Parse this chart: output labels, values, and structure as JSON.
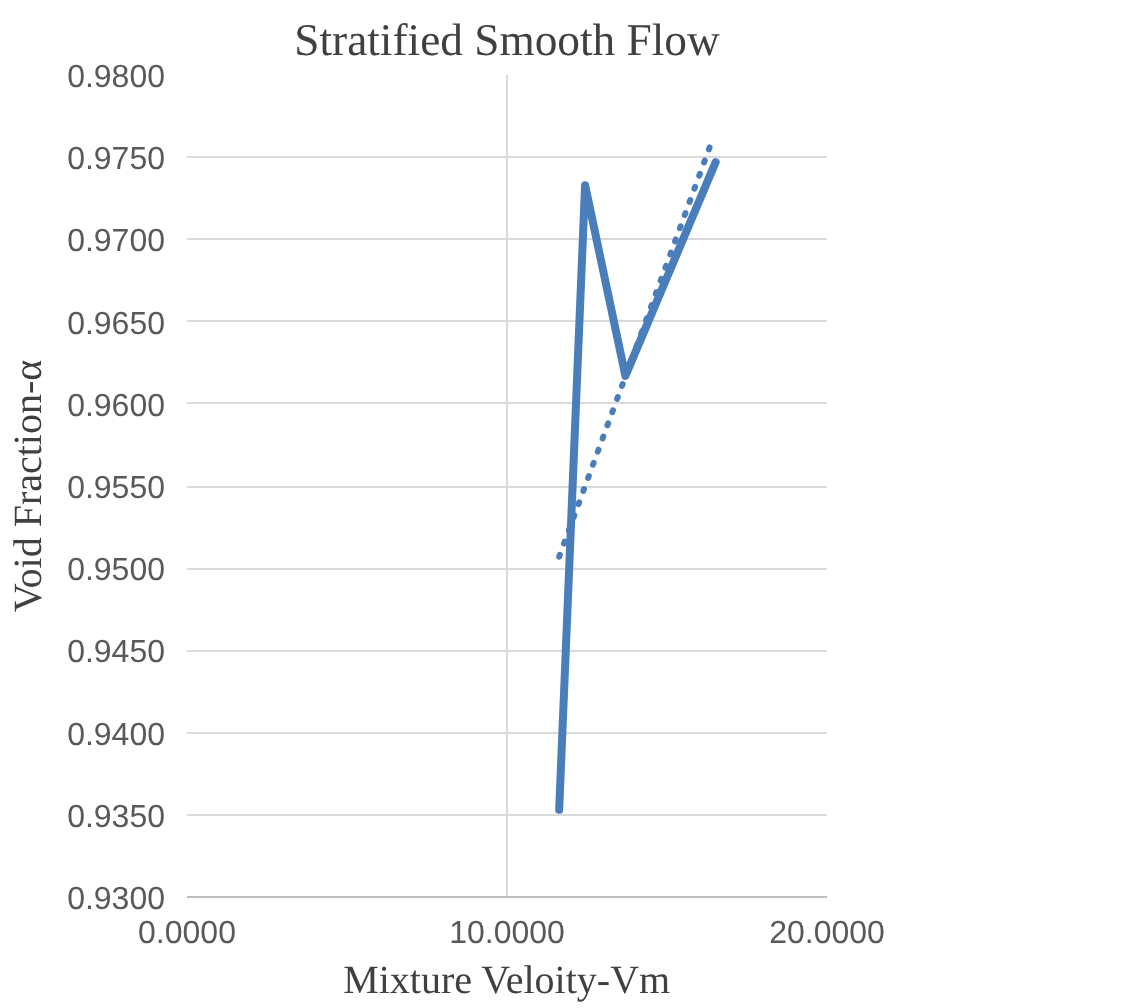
{
  "chart_data": {
    "type": "line",
    "title": "Stratified Smooth Flow",
    "xlabel": "Mixture Veloity-Vm",
    "ylabel": "Void Fraction-α",
    "xlim": [
      0,
      20
    ],
    "xticks": [
      {
        "value": 0,
        "label": "0.0000"
      },
      {
        "value": 10,
        "label": "10.0000"
      },
      {
        "value": 20,
        "label": "20.0000"
      }
    ],
    "ylim": [
      0.93,
      0.98
    ],
    "yticks": [
      {
        "value": 0.93,
        "label": "0.9300"
      },
      {
        "value": 0.935,
        "label": "0.9350"
      },
      {
        "value": 0.94,
        "label": "0.9400"
      },
      {
        "value": 0.945,
        "label": "0.9450"
      },
      {
        "value": 0.95,
        "label": "0.9500"
      },
      {
        "value": 0.955,
        "label": "0.9550"
      },
      {
        "value": 0.96,
        "label": "0.9600"
      },
      {
        "value": 0.965,
        "label": "0.9650"
      },
      {
        "value": 0.97,
        "label": "0.9700"
      },
      {
        "value": 0.975,
        "label": "0.9750"
      },
      {
        "value": 0.98,
        "label": "0.9800"
      }
    ],
    "grid": true,
    "series": [
      {
        "color": "#4a7ebb",
        "x": [
          11.63,
          12.44,
          13.7,
          16.52
        ],
        "values": [
          0.9353,
          0.9733,
          0.9617,
          0.9747
        ],
        "line_style": "solid"
      },
      {
        "type": "line",
        "color": "#4a7ebb",
        "x": [
          11.63,
          16.37
        ],
        "values": [
          0.9507,
          0.9758
        ],
        "line_style": "dotted"
      }
    ]
  }
}
